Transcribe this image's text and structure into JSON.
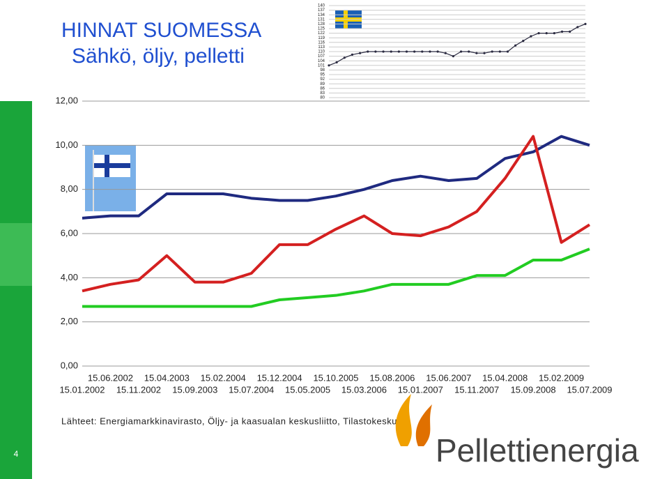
{
  "header": {
    "title": "HINNAT SUOMESSA",
    "subtitle": "Sähkö, öljy, pelletti"
  },
  "chart_data": [
    {
      "type": "line",
      "categories": [
        "15.01.2002",
        "15.06.2002",
        "15.11.2002",
        "15.04.2003",
        "15.09.2003",
        "15.02.2004",
        "15.07.2004",
        "15.12.2004",
        "15.05.2005",
        "15.10.2005",
        "15.03.2006",
        "15.08.2006",
        "15.01.2007",
        "15.06.2007",
        "15.11.2007",
        "15.04.2008",
        "15.09.2008",
        "15.02.2009",
        "15.07.2009"
      ],
      "series": [
        {
          "color": "#1f2a80",
          "values": [
            6.7,
            6.8,
            6.8,
            7.8,
            7.8,
            7.8,
            7.6,
            7.5,
            7.5,
            7.7,
            8.0,
            8.4,
            8.6,
            8.4,
            8.5,
            9.4,
            9.7,
            10.4,
            10.0
          ]
        },
        {
          "color": "#d42020",
          "values": [
            3.4,
            3.7,
            3.9,
            5.0,
            3.8,
            3.8,
            4.2,
            5.5,
            5.5,
            6.2,
            6.8,
            6.0,
            5.9,
            6.3,
            7.0,
            8.5,
            10.4,
            5.6,
            6.4
          ]
        },
        {
          "color": "#22cc22",
          "values": [
            2.7,
            2.7,
            2.7,
            2.7,
            2.7,
            2.7,
            2.7,
            3.0,
            3.1,
            3.2,
            3.4,
            3.7,
            3.7,
            3.7,
            4.1,
            4.1,
            4.8,
            4.8,
            5.3
          ]
        }
      ],
      "ylim": [
        0,
        12
      ],
      "yticks": [
        {
          "value": 0,
          "label": "0,00"
        },
        {
          "value": 2,
          "label": "2,00"
        },
        {
          "value": 4,
          "label": "4,00"
        },
        {
          "value": 6,
          "label": "6,00"
        },
        {
          "value": 8,
          "label": "8,00"
        },
        {
          "value": 10,
          "label": "10,00"
        },
        {
          "value": 12,
          "label": "12,00"
        }
      ],
      "grid": true,
      "source": "Lähteet: Energiamarkkinavirasto, Öljy- ja kaasualan keskusliitto, Tilastokeskus"
    },
    {
      "type": "line",
      "series": [
        {
          "color": "#2a2a40",
          "values": [
            101,
            103,
            106,
            108,
            109,
            110,
            110,
            110,
            110,
            110,
            110,
            110,
            110,
            110,
            110,
            109,
            107,
            110,
            110,
            109,
            109,
            110,
            110,
            110,
            114,
            117,
            120,
            122,
            122,
            122,
            123,
            123,
            126,
            128
          ]
        }
      ],
      "ylim": [
        80,
        140
      ],
      "yticks": [
        80,
        83,
        86,
        89,
        92,
        95,
        98,
        101,
        104,
        107,
        110,
        113,
        116,
        119,
        122,
        125,
        128,
        131,
        134,
        137,
        140
      ],
      "grid": true
    }
  ],
  "footer": {
    "page": "4",
    "logo": "Pellettienergia"
  }
}
